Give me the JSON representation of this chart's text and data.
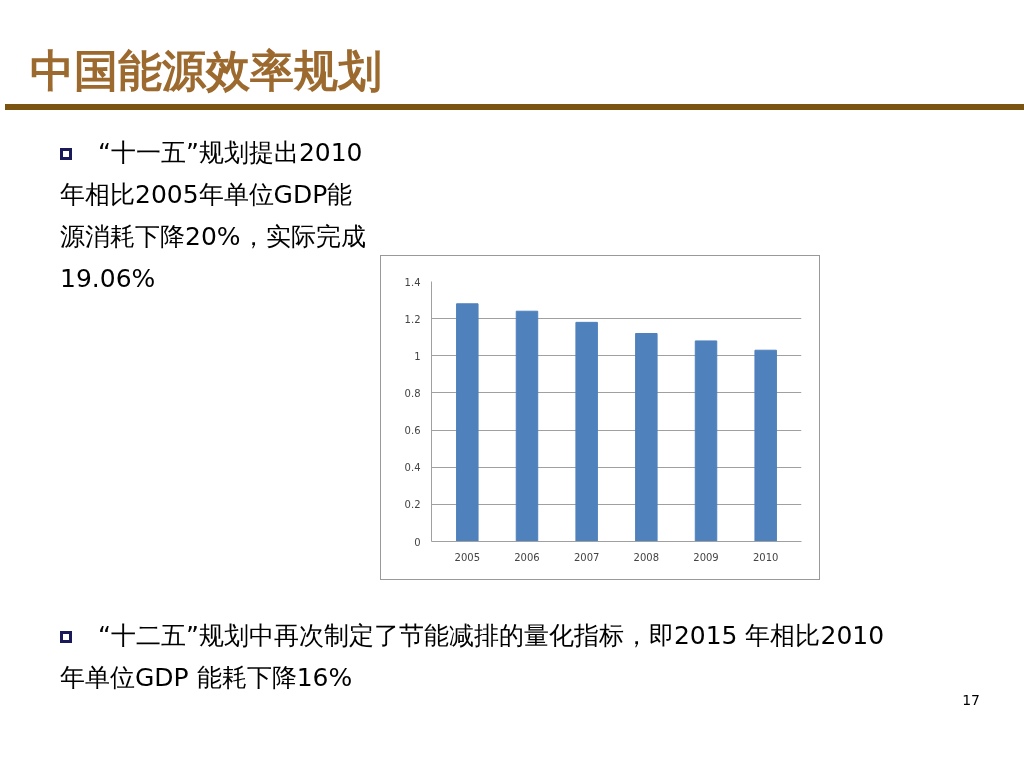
{
  "chart_data": {
    "type": "bar",
    "title": "中国能源效率规划",
    "categories": [
      "2005",
      "2006",
      "2007",
      "2008",
      "2009",
      "2010"
    ],
    "values": [
      1.28,
      1.24,
      1.18,
      1.12,
      1.08,
      1.03
    ],
    "color": "#4f81bd",
    "ylim": [
      0,
      1.4
    ],
    "yticks": [
      0,
      0.2,
      0.4,
      0.6,
      0.8,
      1,
      1.2,
      1.4
    ],
    "grid": "y",
    "annotations": [
      "“十一五”规划提出2010年相比2005年单位GDP能源消耗下降20%，实际完成19.06%",
      "“十二五”规划中再次制定了节能减排的量化指标，即2015 年相比2010 年单位GDP 能耗下降16%",
      "17"
    ]
  }
}
